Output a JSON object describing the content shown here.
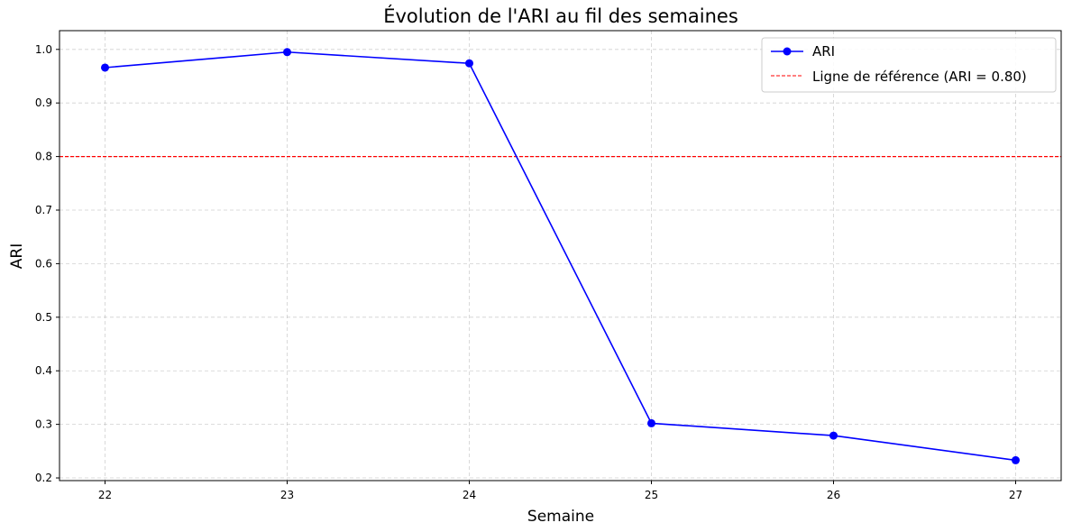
{
  "chart_data": {
    "type": "line",
    "title": "Évolution de l'ARI au fil des semaines",
    "xlabel": "Semaine",
    "ylabel": "ARI",
    "x": [
      22,
      23,
      24,
      25,
      26,
      27
    ],
    "x_ticks": [
      "22",
      "23",
      "24",
      "25",
      "26",
      "27"
    ],
    "xlim": [
      21.75,
      27.25
    ],
    "ylim": [
      0.195,
      1.035
    ],
    "y_ticks": [
      "0.2",
      "0.3",
      "0.4",
      "0.5",
      "0.6",
      "0.7",
      "0.8",
      "0.9",
      "1.0"
    ],
    "y_tick_values": [
      0.2,
      0.3,
      0.4,
      0.5,
      0.6,
      0.7,
      0.8,
      0.9,
      1.0
    ],
    "series": [
      {
        "name": "ARI",
        "values": [
          0.966,
          0.995,
          0.974,
          0.302,
          0.279,
          0.233
        ],
        "color": "#0000ff"
      }
    ],
    "reference_line": {
      "name": "Ligne de référence (ARI = 0.80)",
      "value": 0.8,
      "color": "#ff0000"
    },
    "grid": true,
    "legend_position": "top-right"
  }
}
